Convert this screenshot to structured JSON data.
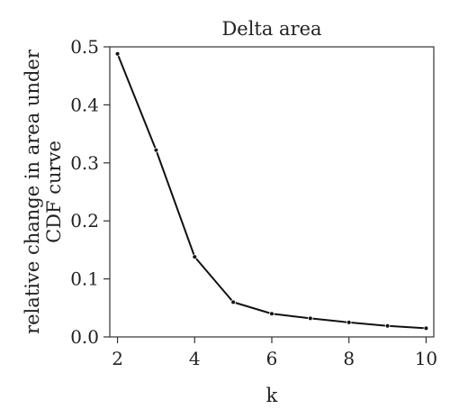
{
  "chart_data": {
    "type": "line",
    "title": "Delta area",
    "xlabel": "k",
    "ylabel_lines": [
      "relative change in area under",
      "CDF curve"
    ],
    "x": [
      2,
      3,
      4,
      5,
      6,
      7,
      8,
      9,
      10
    ],
    "series": [
      {
        "values": [
          0.488,
          0.322,
          0.138,
          0.06,
          0.04,
          0.032,
          0.025,
          0.019,
          0.015
        ]
      }
    ],
    "xlim": [
      1.8,
      10.2
    ],
    "ylim": [
      0.0,
      0.5
    ],
    "xticks": [
      2,
      4,
      6,
      8,
      10
    ],
    "xtick_labels": [
      "2",
      "4",
      "6",
      "8",
      "10"
    ],
    "yticks": [
      0.0,
      0.1,
      0.2,
      0.3,
      0.4,
      0.5
    ],
    "ytick_labels": [
      "0.0",
      "0.1",
      "0.2",
      "0.3",
      "0.4",
      "0.5"
    ],
    "grid": false,
    "legend": "none",
    "line_color": "#111111"
  }
}
